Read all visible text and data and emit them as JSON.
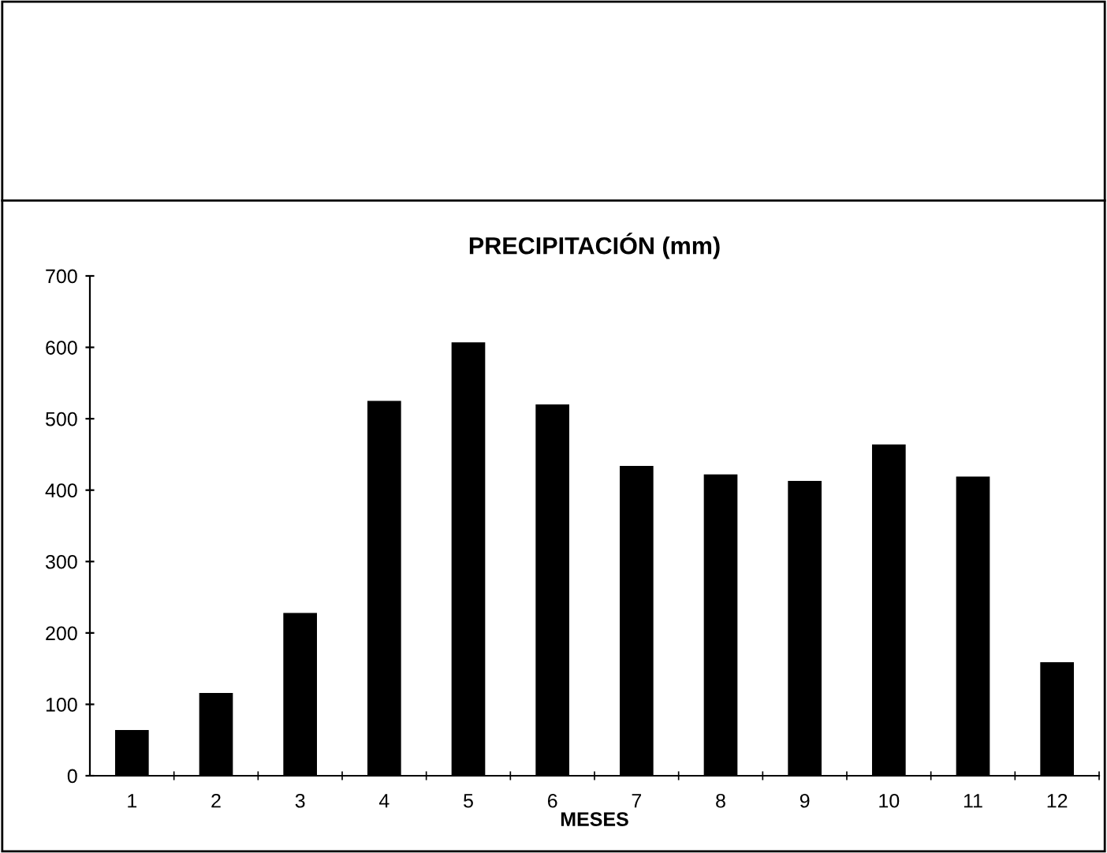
{
  "chart_data": {
    "type": "bar",
    "title": "PRECIPITACIÓN (mm)",
    "xlabel": "MESES",
    "categories": [
      "1",
      "2",
      "3",
      "4",
      "5",
      "6",
      "7",
      "8",
      "9",
      "10",
      "11",
      "12"
    ],
    "values": [
      64,
      116,
      228,
      525,
      607,
      520,
      434,
      422,
      413,
      464,
      419,
      159
    ],
    "color": "#000000",
    "ylim": [
      0,
      700
    ],
    "yticks": [
      0,
      100,
      200,
      300,
      400,
      500,
      600,
      700
    ],
    "grid": false
  }
}
